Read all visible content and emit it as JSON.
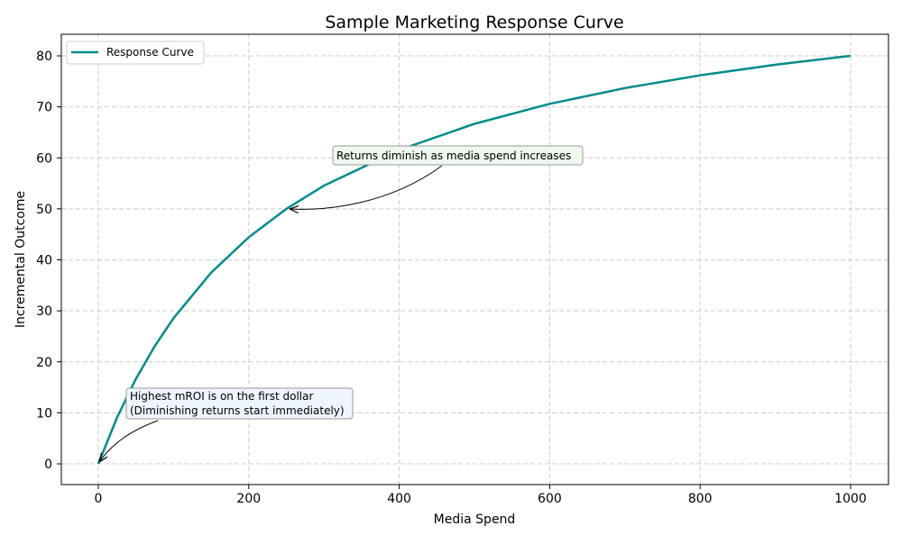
{
  "chart_data": {
    "type": "line",
    "title": "Sample Marketing Response Curve",
    "xlabel": "Media Spend",
    "ylabel": "Incremental Outcome",
    "xlim": [
      -50,
      1050
    ],
    "ylim": [
      -4,
      84
    ],
    "xticks": [
      0,
      200,
      400,
      600,
      800,
      1000
    ],
    "yticks": [
      0,
      10,
      20,
      30,
      40,
      50,
      60,
      70,
      80
    ],
    "grid": true,
    "legend_position": "top-left",
    "series": [
      {
        "name": "Response Curve",
        "color": "#008b8b",
        "x": [
          0,
          25,
          50,
          75,
          100,
          150,
          200,
          250,
          300,
          400,
          500,
          600,
          700,
          800,
          900,
          1000
        ],
        "y": [
          0,
          9.09,
          16.67,
          23.08,
          28.57,
          37.5,
          44.44,
          50,
          54.55,
          61.54,
          66.67,
          70.59,
          73.68,
          76.19,
          78.26,
          80
        ]
      }
    ],
    "annotations": [
      {
        "text": "Returns diminish as media spend increases",
        "point": [
          250,
          50
        ],
        "background": "#eef8ee"
      },
      {
        "text_lines": [
          "Highest mROI is on the first dollar",
          "(Diminishing returns start immediately)"
        ],
        "point": [
          0,
          0
        ],
        "background": "#eef5ff"
      }
    ]
  }
}
